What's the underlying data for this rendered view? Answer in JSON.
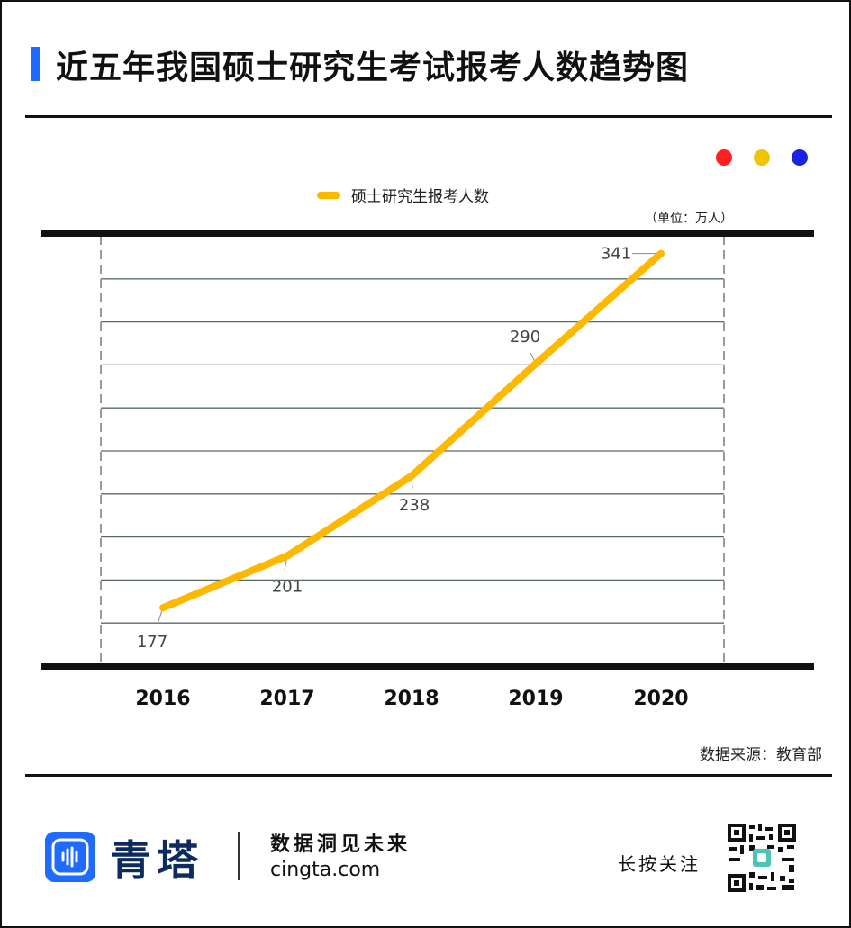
{
  "header": {
    "title": "近五年我国硕士研究生考试报考人数趋势图"
  },
  "decor_dots": [
    "#ff2020",
    "#f0c400",
    "#1a24e0"
  ],
  "colors": {
    "accent": "#1f6bff",
    "line": "#ffb800",
    "grid": "#5a6b66",
    "axis": "#111111"
  },
  "unit_label": "（单位：万人）",
  "chart_data": {
    "type": "line",
    "title": "近五年我国硕士研究生考试报考人数趋势图",
    "categories": [
      "2016",
      "2017",
      "2018",
      "2019",
      "2020"
    ],
    "series": [
      {
        "name": "硕士研究生报考人数",
        "values": [
          177,
          201,
          238,
          290,
          341
        ]
      }
    ],
    "data_labels": [
      "177",
      "201",
      "238",
      "290",
      "341"
    ],
    "ylim": [
      150,
      350
    ],
    "grid": true,
    "legend": "top-center",
    "xlabel": "",
    "ylabel": ""
  },
  "source": "数据来源：教育部",
  "footer": {
    "brand_cn": "青塔",
    "slogan": "数据洞见未来",
    "site": "cingta.com",
    "follow": "长按关注",
    "icons": [
      "cingta-logo-icon",
      "qr-code-icon"
    ]
  }
}
